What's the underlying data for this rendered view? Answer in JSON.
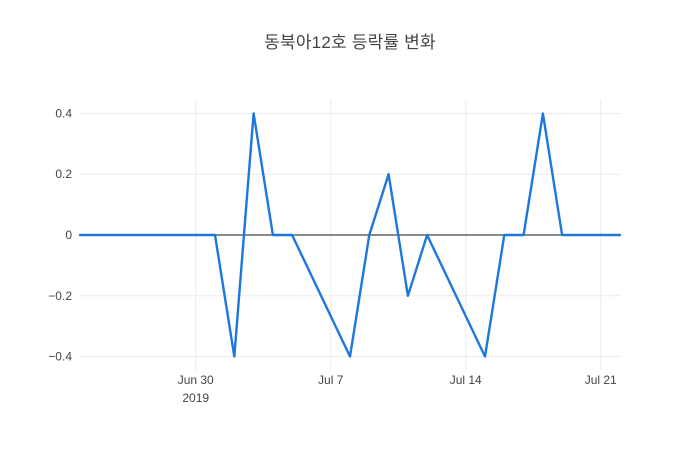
{
  "chart_data": {
    "type": "line",
    "title": "동북아12호 등락률 변화",
    "xlabel": "",
    "ylabel": "",
    "legend": false,
    "grid": true,
    "x_range": [
      "2019-06-24",
      "2019-07-22"
    ],
    "y_range": [
      -0.4444,
      0.4444
    ],
    "series": [
      {
        "name": "등락률",
        "points": [
          [
            "2019-06-24",
            0
          ],
          [
            "2019-06-25",
            0
          ],
          [
            "2019-06-26",
            0
          ],
          [
            "2019-06-27",
            0
          ],
          [
            "2019-06-28",
            0
          ],
          [
            "2019-07-01",
            0
          ],
          [
            "2019-07-02",
            -0.4
          ],
          [
            "2019-07-03",
            0.4
          ],
          [
            "2019-07-04",
            0
          ],
          [
            "2019-07-05",
            0
          ],
          [
            "2019-07-08",
            -0.4
          ],
          [
            "2019-07-09",
            0
          ],
          [
            "2019-07-10",
            0.2
          ],
          [
            "2019-07-11",
            -0.2
          ],
          [
            "2019-07-12",
            0
          ],
          [
            "2019-07-15",
            -0.4
          ],
          [
            "2019-07-16",
            0
          ],
          [
            "2019-07-17",
            0
          ],
          [
            "2019-07-18",
            0.4
          ],
          [
            "2019-07-19",
            0
          ],
          [
            "2019-07-22",
            0
          ]
        ]
      }
    ],
    "x_ticks": [
      {
        "date": "2019-06-30",
        "label": "Jun 30",
        "sublabel": "2019"
      },
      {
        "date": "2019-07-07",
        "label": "Jul 7",
        "sublabel": ""
      },
      {
        "date": "2019-07-14",
        "label": "Jul 14",
        "sublabel": ""
      },
      {
        "date": "2019-07-21",
        "label": "Jul 21",
        "sublabel": ""
      }
    ],
    "y_ticks": [
      {
        "value": 0.4,
        "label": "0.4"
      },
      {
        "value": 0.2,
        "label": "0.2"
      },
      {
        "value": 0,
        "label": "0"
      },
      {
        "value": -0.2,
        "label": "−0.2"
      },
      {
        "value": -0.4,
        "label": "−0.4"
      }
    ],
    "colors": {
      "line": "#1e78dc",
      "grid": "#ebebeb",
      "zeroline": "#444444",
      "tick_text": "#444444",
      "title_text": "#444444",
      "background": "#ffffff"
    }
  }
}
